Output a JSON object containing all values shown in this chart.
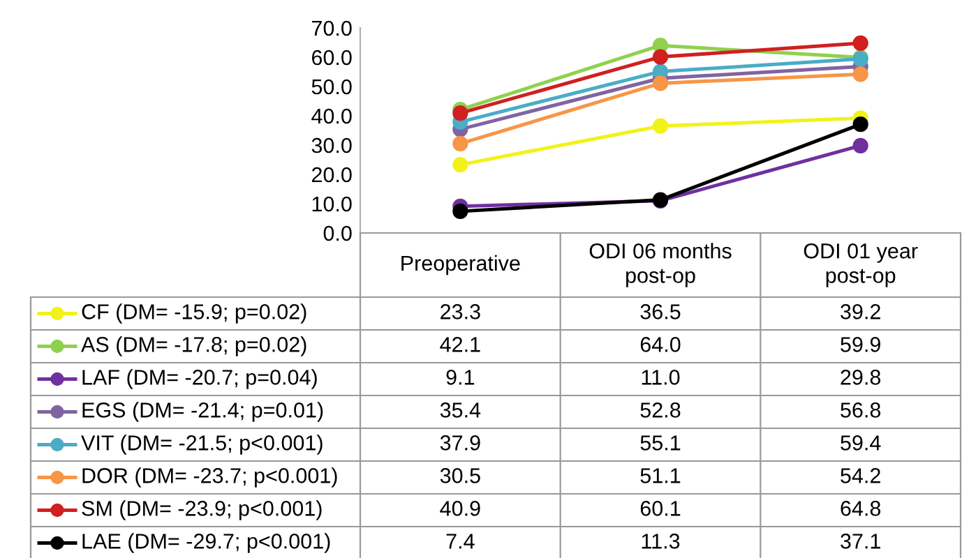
{
  "chart_data": {
    "type": "line",
    "categories": [
      "Preoperative",
      "ODI 06 months\npost-op",
      "ODI 01 year\npost-op"
    ],
    "ylim": [
      0,
      70
    ],
    "yticks": [
      {
        "value": 0,
        "label": "0.0"
      },
      {
        "value": 10,
        "label": "10.0"
      },
      {
        "value": 20,
        "label": "20.0"
      },
      {
        "value": 30,
        "label": "30.0"
      },
      {
        "value": 40,
        "label": "40.0"
      },
      {
        "value": 50,
        "label": "50.0"
      },
      {
        "value": 60,
        "label": "60.0"
      },
      {
        "value": 70,
        "label": "70.0"
      }
    ],
    "grid": false,
    "marker": "circle",
    "line_style": "solid",
    "legend": "bottom left",
    "series": [
      {
        "name": "CF (DM= -15.9; p=0.02)",
        "color": "#f2f21a",
        "values": [
          23.3,
          36.5,
          39.2
        ],
        "value_labels": [
          "23.3",
          "36.5",
          "39.2"
        ]
      },
      {
        "name": "AS (DM= -17.8; p=0.02)",
        "color": "#8fd14f",
        "values": [
          42.1,
          64.0,
          59.9
        ],
        "value_labels": [
          "42.1",
          "64.0",
          "59.9"
        ]
      },
      {
        "name": "LAF (DM= -20.7; p=0.04)",
        "color": "#7030a0",
        "values": [
          9.1,
          11.0,
          29.8
        ],
        "value_labels": [
          "9.1",
          "11.0",
          "29.8"
        ]
      },
      {
        "name": "EGS (DM= -21.4; p=0.01)",
        "color": "#8064a2",
        "values": [
          35.4,
          52.8,
          56.8
        ],
        "value_labels": [
          "35.4",
          "52.8",
          "56.8"
        ]
      },
      {
        "name": "VIT (DM= -21.5; p<0.001)",
        "color": "#4bacc6",
        "values": [
          37.9,
          55.1,
          59.4
        ],
        "value_labels": [
          "37.9",
          "55.1",
          "59.4"
        ]
      },
      {
        "name": "DOR (DM= -23.7; p<0.001)",
        "color": "#f79646",
        "values": [
          30.5,
          51.1,
          54.2
        ],
        "value_labels": [
          "30.5",
          "51.1",
          "54.2"
        ]
      },
      {
        "name": "SM (DM= -23.9; p<0.001)",
        "color": "#d02020",
        "values": [
          40.9,
          60.1,
          64.8
        ],
        "value_labels": [
          "40.9",
          "60.1",
          "64.8"
        ]
      },
      {
        "name": "LAE (DM= -29.7; p<0.001)",
        "color": "#000000",
        "values": [
          7.4,
          11.3,
          37.1
        ],
        "value_labels": [
          "7.4",
          "11.3",
          "37.1"
        ]
      }
    ]
  }
}
